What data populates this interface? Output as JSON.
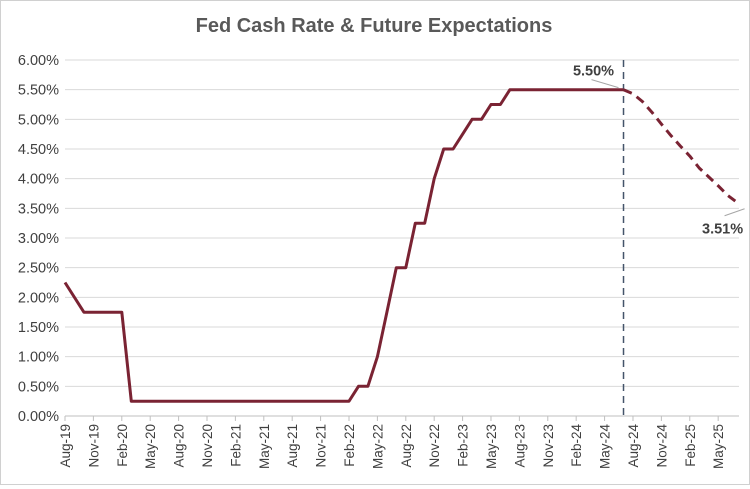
{
  "chart_data": {
    "type": "line",
    "title": "Fed Cash Rate & Future Expectations",
    "xlabel": "",
    "ylabel": "",
    "ylim": [
      0,
      6
    ],
    "ytick_step": 0.5,
    "y_format": "percent_2dp",
    "grid": true,
    "legend": "none",
    "line_color": "#7a2333",
    "divider_color": "#44546a",
    "x_tick_labels": [
      "Aug-19",
      "Nov-19",
      "Feb-20",
      "May-20",
      "Aug-20",
      "Nov-20",
      "Feb-21",
      "May-21",
      "Aug-21",
      "Nov-21",
      "Feb-22",
      "May-22",
      "Aug-22",
      "Nov-22",
      "Feb-23",
      "May-23",
      "Aug-23",
      "Nov-23",
      "Feb-24",
      "May-24",
      "Aug-24",
      "Nov-24",
      "Feb-25",
      "May-25"
    ],
    "series": [
      {
        "style": "solid",
        "x": [
          "2019-08",
          "2019-10",
          "2019-11",
          "2019-12",
          "2020-01",
          "2020-02",
          "2020-03",
          "2020-04",
          "2020-05",
          "2020-06",
          "2020-07",
          "2020-08",
          "2020-09",
          "2020-10",
          "2020-11",
          "2020-12",
          "2021-01",
          "2021-02",
          "2021-03",
          "2021-04",
          "2021-05",
          "2021-06",
          "2021-07",
          "2021-08",
          "2021-09",
          "2021-10",
          "2021-11",
          "2021-12",
          "2022-01",
          "2022-02",
          "2022-03",
          "2022-04",
          "2022-05",
          "2022-06",
          "2022-07",
          "2022-08",
          "2022-09",
          "2022-10",
          "2022-11",
          "2022-12",
          "2023-01",
          "2023-02",
          "2023-03",
          "2023-04",
          "2023-05",
          "2023-06",
          "2023-07",
          "2023-08",
          "2023-09",
          "2023-10",
          "2023-11",
          "2023-12",
          "2024-01",
          "2024-02",
          "2024-03",
          "2024-04",
          "2024-05",
          "2024-06",
          "2024-07"
        ],
        "y": [
          2.25,
          1.75,
          1.75,
          1.75,
          1.75,
          1.75,
          0.25,
          0.25,
          0.25,
          0.25,
          0.25,
          0.25,
          0.25,
          0.25,
          0.25,
          0.25,
          0.25,
          0.25,
          0.25,
          0.25,
          0.25,
          0.25,
          0.25,
          0.25,
          0.25,
          0.25,
          0.25,
          0.25,
          0.25,
          0.25,
          0.5,
          0.5,
          1.0,
          1.75,
          2.5,
          2.5,
          3.25,
          3.25,
          4.0,
          4.5,
          4.5,
          4.75,
          5.0,
          5.0,
          5.25,
          5.25,
          5.5,
          5.5,
          5.5,
          5.5,
          5.5,
          5.5,
          5.5,
          5.5,
          5.5,
          5.5,
          5.5,
          5.5,
          5.5
        ]
      },
      {
        "style": "dashed",
        "x": [
          "2024-07",
          "2024-08",
          "2024-09",
          "2024-10",
          "2024-11",
          "2024-12",
          "2025-01",
          "2025-02",
          "2025-03",
          "2025-04",
          "2025-05",
          "2025-06",
          "2025-07"
        ],
        "y": [
          5.5,
          5.43,
          5.3,
          5.12,
          4.92,
          4.73,
          4.55,
          4.38,
          4.18,
          4.03,
          3.88,
          3.72,
          3.6
        ]
      }
    ],
    "divider_at": "2024-07",
    "annotations": [
      {
        "text": "5.50%",
        "x": "2024-07",
        "y": 5.5
      },
      {
        "text": "3.51%",
        "x": "2025-08",
        "y": 3.51
      }
    ]
  }
}
